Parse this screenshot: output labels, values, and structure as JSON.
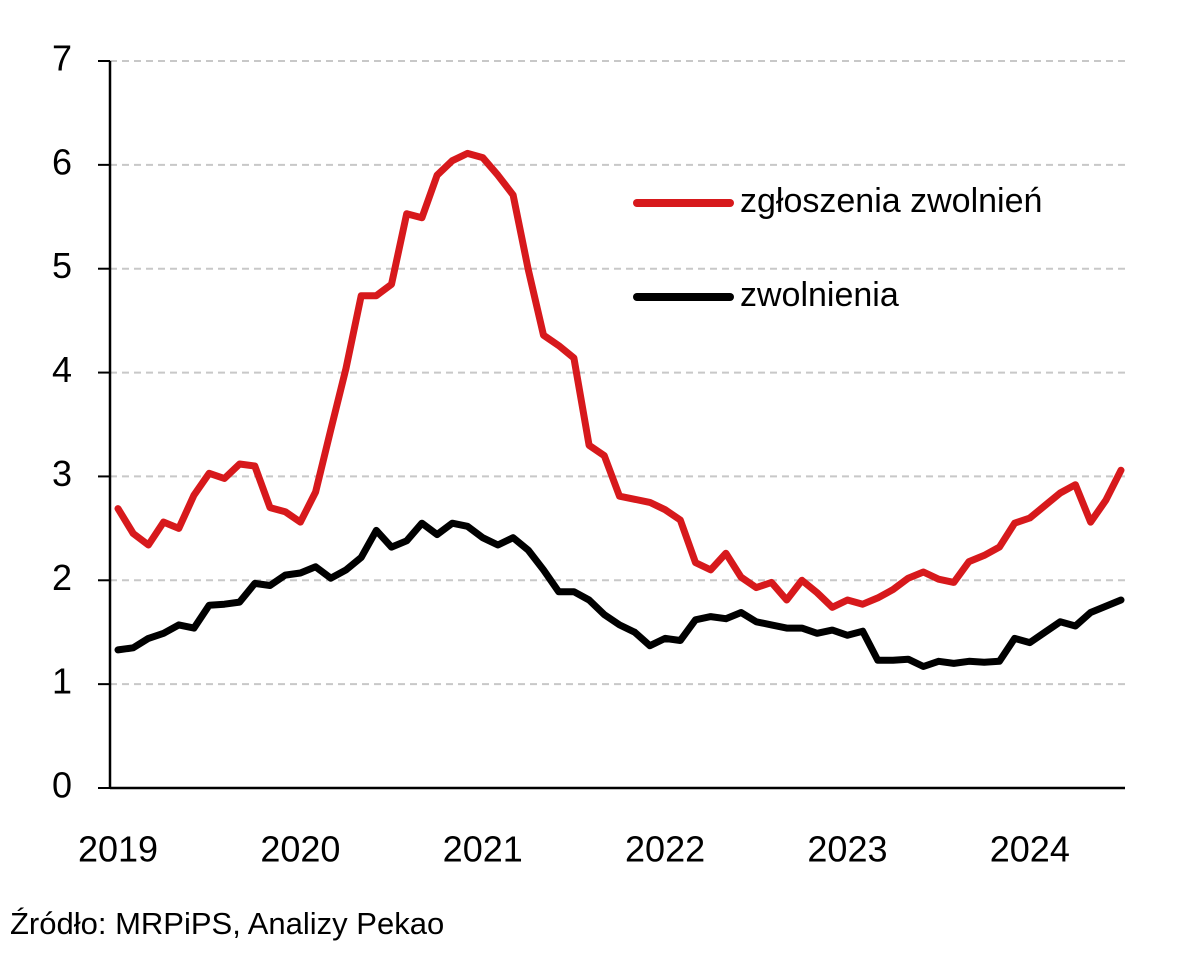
{
  "chart_data": {
    "type": "line",
    "categories": [
      "2019",
      null,
      null,
      null,
      null,
      null,
      null,
      null,
      null,
      null,
      null,
      null,
      "2020",
      null,
      null,
      null,
      null,
      null,
      null,
      null,
      null,
      null,
      null,
      null,
      "2021",
      null,
      null,
      null,
      null,
      null,
      null,
      null,
      null,
      null,
      null,
      null,
      "2022",
      null,
      null,
      null,
      null,
      null,
      null,
      null,
      null,
      null,
      null,
      null,
      "2023",
      null,
      null,
      null,
      null,
      null,
      null,
      null,
      null,
      null,
      null,
      null,
      "2024",
      null,
      null,
      null,
      null,
      null,
      null
    ],
    "series": [
      {
        "name": "zgłoszenia zwolnień",
        "color": "#d7191c",
        "values": [
          2.69,
          2.45,
          2.34,
          2.56,
          2.5,
          2.82,
          3.03,
          2.98,
          3.12,
          3.1,
          2.7,
          2.66,
          2.56,
          2.85,
          3.45,
          4.04,
          4.74,
          4.74,
          4.85,
          5.53,
          5.49,
          5.9,
          6.04,
          6.11,
          6.07,
          5.9,
          5.71,
          4.99,
          4.36,
          4.26,
          4.14,
          3.3,
          3.2,
          2.81,
          2.78,
          2.75,
          2.68,
          2.58,
          2.17,
          2.1,
          2.26,
          2.03,
          1.93,
          1.98,
          1.81,
          2.0,
          1.88,
          1.74,
          1.81,
          1.77,
          1.83,
          1.91,
          2.02,
          2.08,
          2.01,
          1.98,
          2.18,
          2.24,
          2.32,
          2.55,
          2.6,
          2.72,
          2.84,
          2.92,
          2.56,
          2.77,
          3.06
        ]
      },
      {
        "name": "zwolnienia",
        "color": "#000000",
        "values": [
          1.33,
          1.35,
          1.44,
          1.49,
          1.57,
          1.54,
          1.76,
          1.77,
          1.79,
          1.97,
          1.95,
          2.05,
          2.07,
          2.13,
          2.02,
          2.1,
          2.22,
          2.48,
          2.32,
          2.38,
          2.55,
          2.44,
          2.55,
          2.52,
          2.41,
          2.34,
          2.41,
          2.29,
          2.1,
          1.89,
          1.89,
          1.81,
          1.67,
          1.57,
          1.5,
          1.37,
          1.44,
          1.42,
          1.62,
          1.65,
          1.63,
          1.69,
          1.6,
          1.57,
          1.54,
          1.54,
          1.49,
          1.52,
          1.47,
          1.51,
          1.23,
          1.23,
          1.24,
          1.17,
          1.22,
          1.2,
          1.22,
          1.21,
          1.22,
          1.44,
          1.4,
          1.5,
          1.6,
          1.56,
          1.69,
          1.75,
          1.81
        ]
      }
    ],
    "ylim": [
      0,
      7
    ],
    "yticks": [
      0,
      1,
      2,
      3,
      4,
      5,
      6,
      7
    ],
    "grid": true,
    "source": "Źródło: MRPiPS, Analizy Pekao"
  }
}
